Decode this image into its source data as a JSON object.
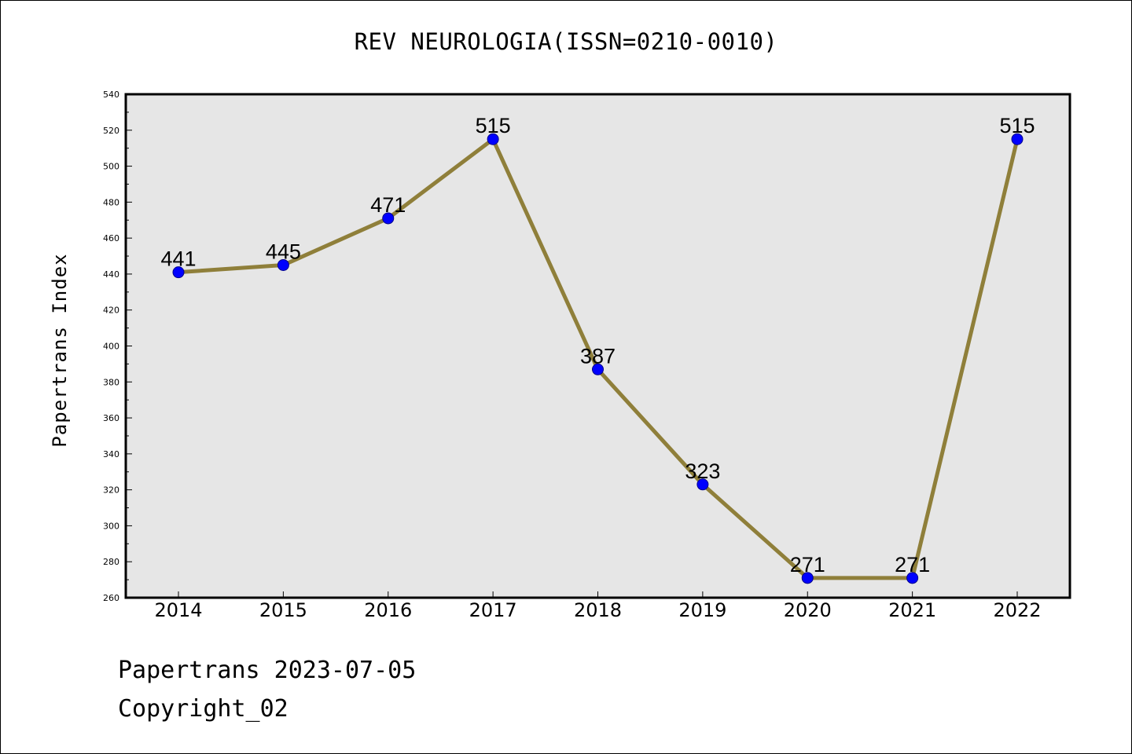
{
  "chart_data": {
    "type": "line",
    "title": "REV NEUROLOGIA(ISSN=0210-0010)",
    "xlabel": "",
    "ylabel": "Papertrans Index",
    "categories": [
      "2014",
      "2015",
      "2016",
      "2017",
      "2018",
      "2019",
      "2020",
      "2021",
      "2022"
    ],
    "series": [
      {
        "values": [
          441,
          445,
          471,
          515,
          387,
          323,
          271,
          271,
          515
        ]
      }
    ],
    "data_labels": [
      "441",
      "445",
      "471",
      "515",
      "387",
      "323",
      "271",
      "271",
      "515"
    ],
    "ylim": [
      260,
      540
    ],
    "yticks": [
      "260",
      "280",
      "300",
      "320",
      "340",
      "360",
      "380",
      "400",
      "420",
      "440",
      "460",
      "480",
      "500",
      "520",
      "540"
    ],
    "grid": false,
    "legend": "none",
    "line_color": "#8f7f3a",
    "marker_color": "#0000ff",
    "plot_background": "#e6e6e6"
  },
  "footer": {
    "date_text": "Papertrans 2023-07-05",
    "copyright_text": "Copyright_02"
  }
}
